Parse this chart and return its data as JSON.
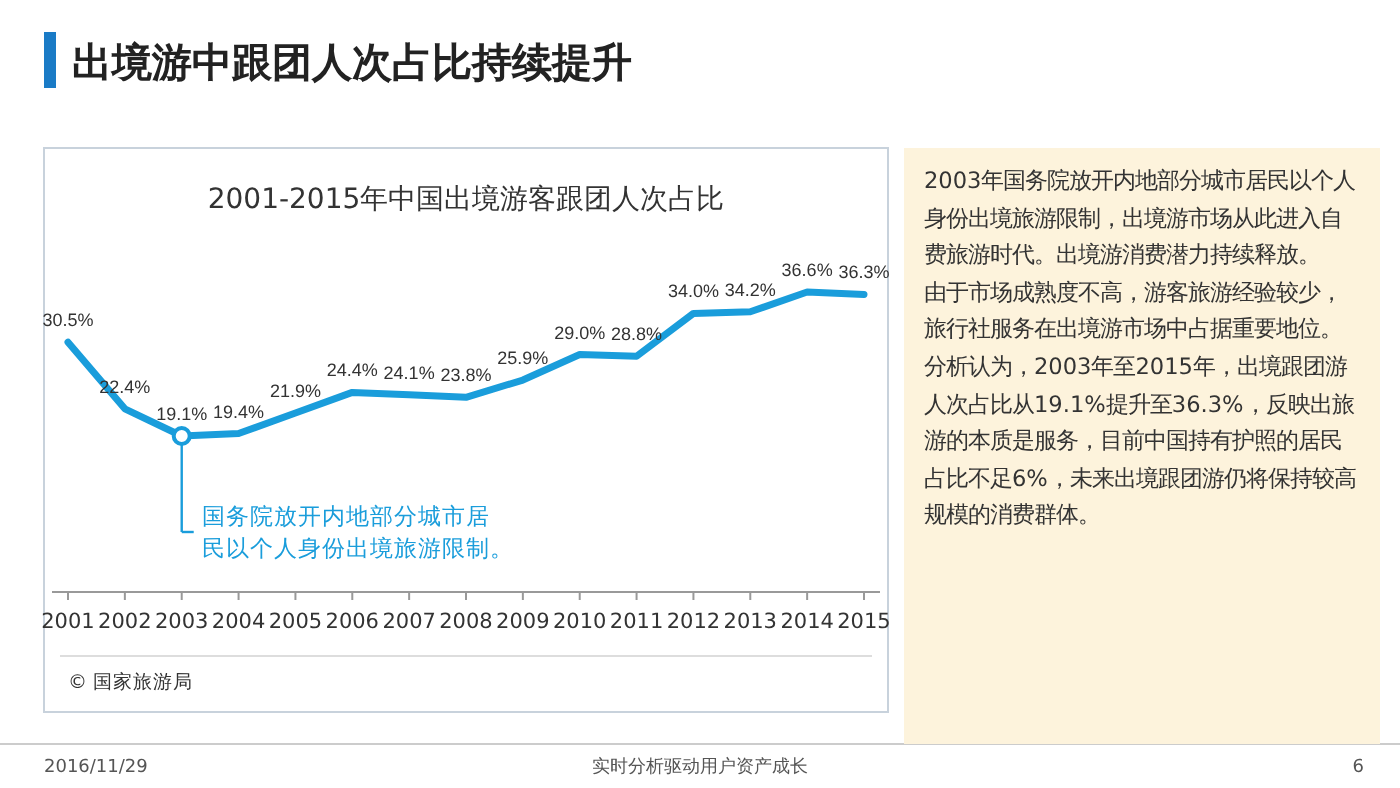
{
  "chart_data": {
    "type": "line",
    "title": "出境游中跟团人次占比持续提升",
    "subtitle": "2001-2015年中国出境游客跟团人次占比",
    "categories": [
      "2001",
      "2002",
      "2003",
      "2004",
      "2005",
      "2006",
      "2007",
      "2008",
      "2009",
      "2010",
      "2011",
      "2012",
      "2013",
      "2014",
      "2015"
    ],
    "series": [
      {
        "color": "#1a9ddb",
        "values": [
          30.5,
          22.4,
          19.1,
          19.4,
          21.9,
          24.4,
          24.1,
          23.8,
          25.9,
          29.0,
          28.8,
          34.0,
          34.2,
          36.6,
          36.3
        ],
        "value_labels": [
          "30.5%",
          "22.4%",
          "19.1%",
          "19.4%",
          "21.9%",
          "24.4%",
          "24.1%",
          "23.8%",
          "25.9%",
          "29.0%",
          "28.8%",
          "34.0%",
          "34.2%",
          "36.6%",
          "36.3%"
        ]
      }
    ],
    "annotations": [
      {
        "text": "国务院放开内地部分城市居民以个人身份出境旅游限制。",
        "x": "2003",
        "y": 19.1
      },
      "© 国家旅游局",
      "2003年国务院放开内地部分城市居民以个人身份出境旅游限制，出境游市场从此进入自费旅游时代。出境游消费潜力持续释放。",
      "由于市场成熟度不高，游客旅游经验较少，旅行社服务在出境游市场中占据重要地位。分析认为，2003年至2015年，出境跟团游人次占比从19.1%提升至36.3%，反映出旅游的本质是服务，目前中国持有护照的居民占比不足6%，未来出境跟团游仍将保持较高规模的消费群体。",
      "2016/11/29",
      "实时分析驱动用户资产成长",
      "6"
    ]
  }
}
